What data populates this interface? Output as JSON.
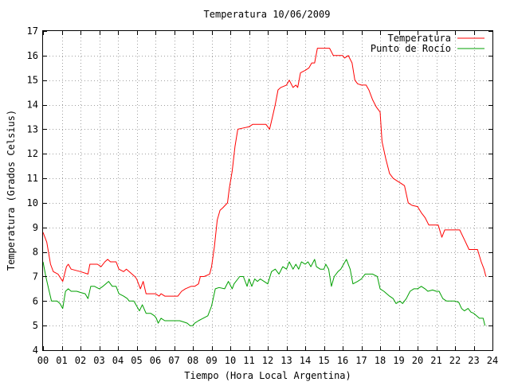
{
  "chart_data": {
    "type": "line",
    "title": "Temperatura 10/06/2009",
    "xlabel": "Tiempo (Hora Local Argentina)",
    "ylabel": "Temperatura (Grados Celsius)",
    "xlim": [
      0,
      24
    ],
    "ylim": [
      4,
      17
    ],
    "x_ticks": [
      "00",
      "01",
      "02",
      "03",
      "04",
      "05",
      "06",
      "07",
      "08",
      "09",
      "10",
      "11",
      "12",
      "13",
      "14",
      "15",
      "16",
      "17",
      "18",
      "19",
      "20",
      "21",
      "22",
      "23",
      "24"
    ],
    "y_ticks": [
      "4",
      "5",
      "6",
      "7",
      "8",
      "9",
      "10",
      "11",
      "12",
      "13",
      "14",
      "15",
      "16",
      "17"
    ],
    "grid": true,
    "legend_position": "top-right",
    "series": [
      {
        "name": "Temperatura",
        "color": "#ff0000",
        "points": [
          [
            0.0,
            8.8
          ],
          [
            0.2,
            8.4
          ],
          [
            0.4,
            7.5
          ],
          [
            0.55,
            7.2
          ],
          [
            0.8,
            7.1
          ],
          [
            1.05,
            6.8
          ],
          [
            1.25,
            7.4
          ],
          [
            1.35,
            7.5
          ],
          [
            1.5,
            7.3
          ],
          [
            2.0,
            7.2
          ],
          [
            2.4,
            7.1
          ],
          [
            2.5,
            7.5
          ],
          [
            2.9,
            7.5
          ],
          [
            3.1,
            7.4
          ],
          [
            3.3,
            7.6
          ],
          [
            3.45,
            7.7
          ],
          [
            3.6,
            7.6
          ],
          [
            3.9,
            7.6
          ],
          [
            4.05,
            7.3
          ],
          [
            4.3,
            7.2
          ],
          [
            4.45,
            7.3
          ],
          [
            4.6,
            7.2
          ],
          [
            4.9,
            7.0
          ],
          [
            5.0,
            6.9
          ],
          [
            5.2,
            6.5
          ],
          [
            5.35,
            6.8
          ],
          [
            5.5,
            6.3
          ],
          [
            6.0,
            6.3
          ],
          [
            6.2,
            6.2
          ],
          [
            6.3,
            6.3
          ],
          [
            6.5,
            6.2
          ],
          [
            7.0,
            6.2
          ],
          [
            7.2,
            6.2
          ],
          [
            7.4,
            6.4
          ],
          [
            7.6,
            6.5
          ],
          [
            7.9,
            6.6
          ],
          [
            8.1,
            6.6
          ],
          [
            8.3,
            6.7
          ],
          [
            8.4,
            7.0
          ],
          [
            8.6,
            7.0
          ],
          [
            8.9,
            7.1
          ],
          [
            9.0,
            7.4
          ],
          [
            9.15,
            8.2
          ],
          [
            9.3,
            9.3
          ],
          [
            9.45,
            9.7
          ],
          [
            9.6,
            9.8
          ],
          [
            9.85,
            10.0
          ],
          [
            9.95,
            10.6
          ],
          [
            10.1,
            11.3
          ],
          [
            10.25,
            12.3
          ],
          [
            10.4,
            13.0
          ],
          [
            10.7,
            13.05
          ],
          [
            11.0,
            13.1
          ],
          [
            11.2,
            13.2
          ],
          [
            11.6,
            13.2
          ],
          [
            11.9,
            13.2
          ],
          [
            12.1,
            13.0
          ],
          [
            12.25,
            13.5
          ],
          [
            12.4,
            14.0
          ],
          [
            12.55,
            14.6
          ],
          [
            12.7,
            14.7
          ],
          [
            13.0,
            14.8
          ],
          [
            13.15,
            15.0
          ],
          [
            13.35,
            14.7
          ],
          [
            13.5,
            14.8
          ],
          [
            13.6,
            14.7
          ],
          [
            13.75,
            15.3
          ],
          [
            14.0,
            15.4
          ],
          [
            14.2,
            15.5
          ],
          [
            14.35,
            15.7
          ],
          [
            14.5,
            15.7
          ],
          [
            14.65,
            16.3
          ],
          [
            14.9,
            16.3
          ],
          [
            15.1,
            16.3
          ],
          [
            15.3,
            16.3
          ],
          [
            15.5,
            16.0
          ],
          [
            16.0,
            16.0
          ],
          [
            16.1,
            15.9
          ],
          [
            16.3,
            16.0
          ],
          [
            16.5,
            15.7
          ],
          [
            16.65,
            15.0
          ],
          [
            16.8,
            14.85
          ],
          [
            17.0,
            14.8
          ],
          [
            17.25,
            14.8
          ],
          [
            17.4,
            14.6
          ],
          [
            17.6,
            14.2
          ],
          [
            17.8,
            13.9
          ],
          [
            18.0,
            13.7
          ],
          [
            18.1,
            12.5
          ],
          [
            18.3,
            11.8
          ],
          [
            18.5,
            11.2
          ],
          [
            18.7,
            11.0
          ],
          [
            18.9,
            10.9
          ],
          [
            19.1,
            10.8
          ],
          [
            19.3,
            10.7
          ],
          [
            19.5,
            10.0
          ],
          [
            19.7,
            9.9
          ],
          [
            20.0,
            9.85
          ],
          [
            20.2,
            9.6
          ],
          [
            20.4,
            9.4
          ],
          [
            20.6,
            9.1
          ],
          [
            21.1,
            9.1
          ],
          [
            21.3,
            8.6
          ],
          [
            21.45,
            8.9
          ],
          [
            21.7,
            8.9
          ],
          [
            22.0,
            8.9
          ],
          [
            22.25,
            8.9
          ],
          [
            22.5,
            8.5
          ],
          [
            22.75,
            8.1
          ],
          [
            23.0,
            8.1
          ],
          [
            23.2,
            8.1
          ],
          [
            23.4,
            7.6
          ],
          [
            23.55,
            7.3
          ],
          [
            23.65,
            7.0
          ]
        ]
      },
      {
        "name": "Punto de Rocío",
        "color": "#00a000",
        "points": [
          [
            0.0,
            7.6
          ],
          [
            0.15,
            7.0
          ],
          [
            0.3,
            6.5
          ],
          [
            0.45,
            6.0
          ],
          [
            0.75,
            6.0
          ],
          [
            0.9,
            5.9
          ],
          [
            1.05,
            5.7
          ],
          [
            1.2,
            6.4
          ],
          [
            1.35,
            6.5
          ],
          [
            1.5,
            6.4
          ],
          [
            1.8,
            6.4
          ],
          [
            2.0,
            6.35
          ],
          [
            2.25,
            6.3
          ],
          [
            2.4,
            6.1
          ],
          [
            2.55,
            6.6
          ],
          [
            2.75,
            6.6
          ],
          [
            3.0,
            6.5
          ],
          [
            3.2,
            6.6
          ],
          [
            3.35,
            6.7
          ],
          [
            3.5,
            6.8
          ],
          [
            3.7,
            6.6
          ],
          [
            3.9,
            6.6
          ],
          [
            4.05,
            6.3
          ],
          [
            4.3,
            6.2
          ],
          [
            4.5,
            6.1
          ],
          [
            4.6,
            6.0
          ],
          [
            4.85,
            6.0
          ],
          [
            5.0,
            5.8
          ],
          [
            5.15,
            5.6
          ],
          [
            5.3,
            5.85
          ],
          [
            5.5,
            5.5
          ],
          [
            5.75,
            5.5
          ],
          [
            5.95,
            5.4
          ],
          [
            6.05,
            5.3
          ],
          [
            6.15,
            5.1
          ],
          [
            6.3,
            5.3
          ],
          [
            6.5,
            5.2
          ],
          [
            7.0,
            5.2
          ],
          [
            7.3,
            5.2
          ],
          [
            7.5,
            5.15
          ],
          [
            7.7,
            5.1
          ],
          [
            7.85,
            5.0
          ],
          [
            8.0,
            5.0
          ],
          [
            8.1,
            5.1
          ],
          [
            8.3,
            5.2
          ],
          [
            8.55,
            5.3
          ],
          [
            8.8,
            5.4
          ],
          [
            9.0,
            5.8
          ],
          [
            9.2,
            6.5
          ],
          [
            9.4,
            6.55
          ],
          [
            9.7,
            6.5
          ],
          [
            9.9,
            6.8
          ],
          [
            10.1,
            6.5
          ],
          [
            10.2,
            6.7
          ],
          [
            10.5,
            7.0
          ],
          [
            10.7,
            7.0
          ],
          [
            10.9,
            6.6
          ],
          [
            11.0,
            6.9
          ],
          [
            11.15,
            6.6
          ],
          [
            11.3,
            6.9
          ],
          [
            11.45,
            6.8
          ],
          [
            11.6,
            6.9
          ],
          [
            11.8,
            6.8
          ],
          [
            12.0,
            6.7
          ],
          [
            12.2,
            7.2
          ],
          [
            12.4,
            7.3
          ],
          [
            12.6,
            7.1
          ],
          [
            12.8,
            7.4
          ],
          [
            13.0,
            7.3
          ],
          [
            13.15,
            7.6
          ],
          [
            13.35,
            7.3
          ],
          [
            13.5,
            7.5
          ],
          [
            13.65,
            7.3
          ],
          [
            13.8,
            7.6
          ],
          [
            14.0,
            7.5
          ],
          [
            14.15,
            7.6
          ],
          [
            14.3,
            7.4
          ],
          [
            14.5,
            7.7
          ],
          [
            14.6,
            7.4
          ],
          [
            14.8,
            7.3
          ],
          [
            15.0,
            7.3
          ],
          [
            15.1,
            7.5
          ],
          [
            15.25,
            7.3
          ],
          [
            15.4,
            6.6
          ],
          [
            15.55,
            7.0
          ],
          [
            15.75,
            7.2
          ],
          [
            15.9,
            7.3
          ],
          [
            16.05,
            7.5
          ],
          [
            16.2,
            7.7
          ],
          [
            16.4,
            7.3
          ],
          [
            16.55,
            6.7
          ],
          [
            16.8,
            6.8
          ],
          [
            17.0,
            6.9
          ],
          [
            17.2,
            7.1
          ],
          [
            17.35,
            7.1
          ],
          [
            17.6,
            7.1
          ],
          [
            17.85,
            7.0
          ],
          [
            18.0,
            6.5
          ],
          [
            18.2,
            6.4
          ],
          [
            18.5,
            6.2
          ],
          [
            18.7,
            6.1
          ],
          [
            18.85,
            5.9
          ],
          [
            19.05,
            6.0
          ],
          [
            19.2,
            5.9
          ],
          [
            19.4,
            6.1
          ],
          [
            19.6,
            6.4
          ],
          [
            19.8,
            6.5
          ],
          [
            20.0,
            6.5
          ],
          [
            20.2,
            6.6
          ],
          [
            20.4,
            6.5
          ],
          [
            20.55,
            6.4
          ],
          [
            20.8,
            6.45
          ],
          [
            21.0,
            6.4
          ],
          [
            21.15,
            6.4
          ],
          [
            21.35,
            6.1
          ],
          [
            21.55,
            6.0
          ],
          [
            21.8,
            6.0
          ],
          [
            22.0,
            6.0
          ],
          [
            22.2,
            5.95
          ],
          [
            22.35,
            5.7
          ],
          [
            22.5,
            5.6
          ],
          [
            22.7,
            5.7
          ],
          [
            22.85,
            5.55
          ],
          [
            23.0,
            5.5
          ],
          [
            23.15,
            5.4
          ],
          [
            23.3,
            5.3
          ],
          [
            23.5,
            5.3
          ],
          [
            23.6,
            5.0
          ]
        ]
      }
    ]
  }
}
